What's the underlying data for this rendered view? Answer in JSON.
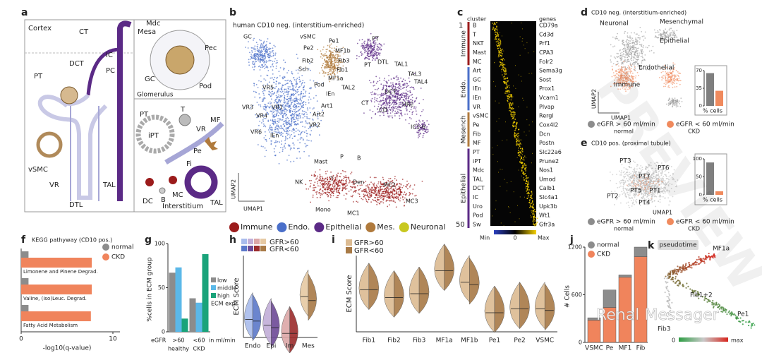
{
  "letters": [
    "a",
    "b",
    "c",
    "d",
    "e",
    "f",
    "g",
    "h",
    "i",
    "j",
    "k"
  ],
  "a": {
    "cortex": "Cortex",
    "glomerulus": "Glomerulus",
    "interstitium": "Interstitium",
    "nephron": [
      "CT",
      "DCT",
      "IC",
      "PC",
      "PT",
      "vSMC",
      "VR",
      "DTL",
      "TAL"
    ],
    "glom": [
      "Mdc",
      "Mesa",
      "Pec",
      "GC",
      "Pod"
    ],
    "inter": [
      "PT",
      "T",
      "iPT",
      "VR",
      "MF",
      "Pe",
      "Fi",
      "MC",
      "DC",
      "B",
      "TAL"
    ]
  },
  "b": {
    "title": "human CD10 neg. (interstitium-enriched)",
    "clusters": [
      "GC",
      "vSMC",
      "Pe1",
      "Pe2",
      "MF1b",
      "Fib2",
      "Fib3",
      "Sch",
      "Fib1",
      "MF1a",
      "Pod",
      "lEn",
      "VR5",
      "VR3",
      "VR1",
      "VR4",
      "Art1",
      "Art2",
      "VR2",
      "VR6",
      "lEn",
      "PT",
      "PT",
      "DTL",
      "TAL1",
      "TAL3",
      "TAL4",
      "TAL2",
      "DCT",
      "CT",
      "CD",
      "URE",
      "IC1-6",
      "Mast",
      "P",
      "B",
      "NK",
      "T",
      "Den",
      "MC2",
      "MC3",
      "Mono",
      "MC1"
    ],
    "ylabel": "UMAP2",
    "xlabel": "UMAP1",
    "legend": [
      {
        "name": "Immune",
        "color": "#9b1b1b"
      },
      {
        "name": "Endo.",
        "color": "#4a6fc9"
      },
      {
        "name": "Epithelial",
        "color": "#5b2a86"
      },
      {
        "name": "Mes.",
        "color": "#b07a3c"
      },
      {
        "name": "Neuronal",
        "color": "#c8c820"
      }
    ]
  },
  "c": {
    "cluster_header": "cluster",
    "genes_header": "genes",
    "row_ticks": [
      "1",
      "50"
    ],
    "clusters": [
      "B",
      "T",
      "NKT",
      "Mast",
      "MC",
      "Art",
      "GC",
      "lEn",
      "lEn",
      "VR",
      "vSMC",
      "Pe",
      "Fib",
      "MF",
      "PT",
      "iPT",
      "Mdc",
      "TAL",
      "DCT",
      "IC",
      "Uro",
      "Pod",
      "Sw"
    ],
    "genes": [
      "CD79a",
      "Cd3d",
      "Prf1",
      "CPA3",
      "Folr2",
      "Sema3g",
      "Sost",
      "Prox1",
      "Vcam1",
      "Plvap",
      "Rergl",
      "Cox4l2",
      "Dcn",
      "Postn",
      "Slc22a6",
      "Prune2",
      "Nos1",
      "Umod",
      "Calb1",
      "Slc4a1",
      "Upk3b",
      "Wt1",
      "Gfr3a"
    ],
    "groups": [
      {
        "name": "Immune",
        "color": "#9b1b1b"
      },
      {
        "name": "Endo.",
        "color": "#4a6fc9"
      },
      {
        "name": "Mesench",
        "color": "#b07a3c"
      },
      {
        "name": "Epithelial",
        "color": "#5b2a86"
      }
    ],
    "colorbar": [
      "Min",
      "0",
      "Max"
    ]
  },
  "d": {
    "title": "CD10 neg. (interstitium-enriched)",
    "labels": [
      "Neuronal",
      "Mesenchymal",
      "Epithelial",
      "Endothelial",
      "Immune"
    ],
    "ylabel": "UMAP2",
    "xlabel": "UMAP1",
    "legend": [
      {
        "name": "eGFR > 60 ml/min",
        "sub": "normal",
        "color": "#8c8c8c"
      },
      {
        "name": "eGFR < 60 ml/min",
        "sub": "CKD",
        "color": "#f08a5d"
      }
    ]
  },
  "e": {
    "title": "CD10 pos. (proximal tubule)",
    "labels": [
      "PT3",
      "PT6",
      "PT7",
      "PT2",
      "PT5",
      "PT1",
      "PT4"
    ],
    "xlabel": "UMAP1",
    "legend": [
      {
        "name": "eGFR > 60 ml/min",
        "sub": "normal",
        "color": "#8c8c8c"
      },
      {
        "name": "eGFR < 60 ml/min",
        "sub": "CKD",
        "color": "#f08a5d"
      }
    ]
  },
  "k": {
    "title": "pseudotime",
    "labels": [
      "MF1a",
      "Fib1+2",
      "Pe1",
      "Fib3"
    ],
    "scale": [
      "0",
      "max"
    ]
  },
  "watermark": "Renal Messager",
  "stamp": "PREVIEW",
  "chart_data": [
    {
      "type": "inset_bar",
      "xlabel": "% cells",
      "values": [
        65,
        30
      ],
      "colors": [
        "#7f7f7f",
        "#f08a5d"
      ],
      "ylim": [
        0,
        70
      ],
      "yticks": [
        0,
        35,
        70
      ]
    },
    {
      "type": "inset_bar",
      "xlabel": "% cells",
      "values": [
        90,
        10
      ],
      "colors": [
        "#7f7f7f",
        "#f08a5d"
      ],
      "ylim": [
        0,
        100
      ],
      "yticks": [
        0,
        50,
        100
      ]
    },
    {
      "type": "hbar",
      "title": "KEGG pathyway (CD10 pos.)",
      "xlabel": "-log10(q-value)",
      "categories": [
        "Limonene and Pinene Degrad.",
        "Valine, (Iso)Leuc. Degrad.",
        "Fatty Acid Metabolism"
      ],
      "series": [
        {
          "name": "normal",
          "color": "#8c8c8c",
          "values": [
            0.8,
            0.8,
            0.8
          ]
        },
        {
          "name": "CKD",
          "color": "#f0845c",
          "values": [
            7.7,
            7.7,
            7.6
          ]
        }
      ],
      "xlim": [
        0,
        10
      ],
      "xticks": [
        0,
        10
      ]
    },
    {
      "type": "grouped_bar",
      "ylabel": "%cells in ECM group",
      "categories": [
        ">60",
        "<60"
      ],
      "sublabels": [
        "healthy",
        "CKD"
      ],
      "axis_title": "eGFR",
      "unit": "in ml/min",
      "legend_title": "ECM exp.",
      "series": [
        {
          "name": "low",
          "color": "#8c8c8c",
          "values": [
            67,
            38
          ]
        },
        {
          "name": "middle",
          "color": "#5bb8e8",
          "values": [
            73,
            33
          ]
        },
        {
          "name": "high",
          "color": "#1aa37a",
          "values": [
            15,
            88
          ]
        }
      ],
      "ylim": [
        0,
        100
      ],
      "yticks": [
        0,
        50,
        100
      ]
    },
    {
      "type": "violin",
      "ylabel": "ECM Score",
      "categories": [
        "Endo",
        "Epi",
        "Im",
        "Mes"
      ],
      "series": [
        {
          "name": "GFR>60",
          "colors": [
            "#a9bcec",
            "#c2aed8",
            "#dca7a7",
            "#e6c9a3"
          ],
          "values": [
            0.22,
            0.15,
            0.05,
            0.5
          ]
        },
        {
          "name": "GFR<60",
          "colors": [
            "#5b78c9",
            "#6d4a96",
            "#9b2c2c",
            "#a87a46"
          ],
          "values": [
            0.2,
            0.12,
            0.05,
            0.45
          ]
        }
      ],
      "ylim": [
        0,
        1
      ]
    },
    {
      "type": "violin",
      "ylabel": "ECM Score",
      "categories": [
        "Fib1",
        "Fib2",
        "Fib3",
        "MF1a",
        "MF1b",
        "Pe1",
        "Pe2",
        "VSMC"
      ],
      "series": [
        {
          "name": "GFR>60",
          "color": "#dcbb92",
          "values": [
            0.55,
            0.45,
            0.5,
            0.8,
            0.65,
            0.25,
            0.3,
            0.3
          ]
        },
        {
          "name": "GFR<60",
          "color": "#a87a46",
          "values": [
            0.55,
            0.45,
            0.5,
            0.8,
            0.62,
            0.25,
            0.3,
            0.28
          ]
        }
      ],
      "ylim": [
        0,
        1
      ]
    },
    {
      "type": "stacked_bar",
      "ylabel": "# Cells",
      "categories": [
        "VSMC",
        "Pe",
        "MF1",
        "Fib"
      ],
      "series": [
        {
          "name": "normal",
          "color": "#8c8c8c",
          "values": [
            30,
            220,
            30,
            120
          ]
        },
        {
          "name": "CKD",
          "color": "#f0845c",
          "values": [
            280,
            440,
            820,
            1080
          ]
        }
      ],
      "ylim": [
        0,
        1200
      ],
      "yticks": [
        0,
        600,
        1200
      ]
    }
  ]
}
